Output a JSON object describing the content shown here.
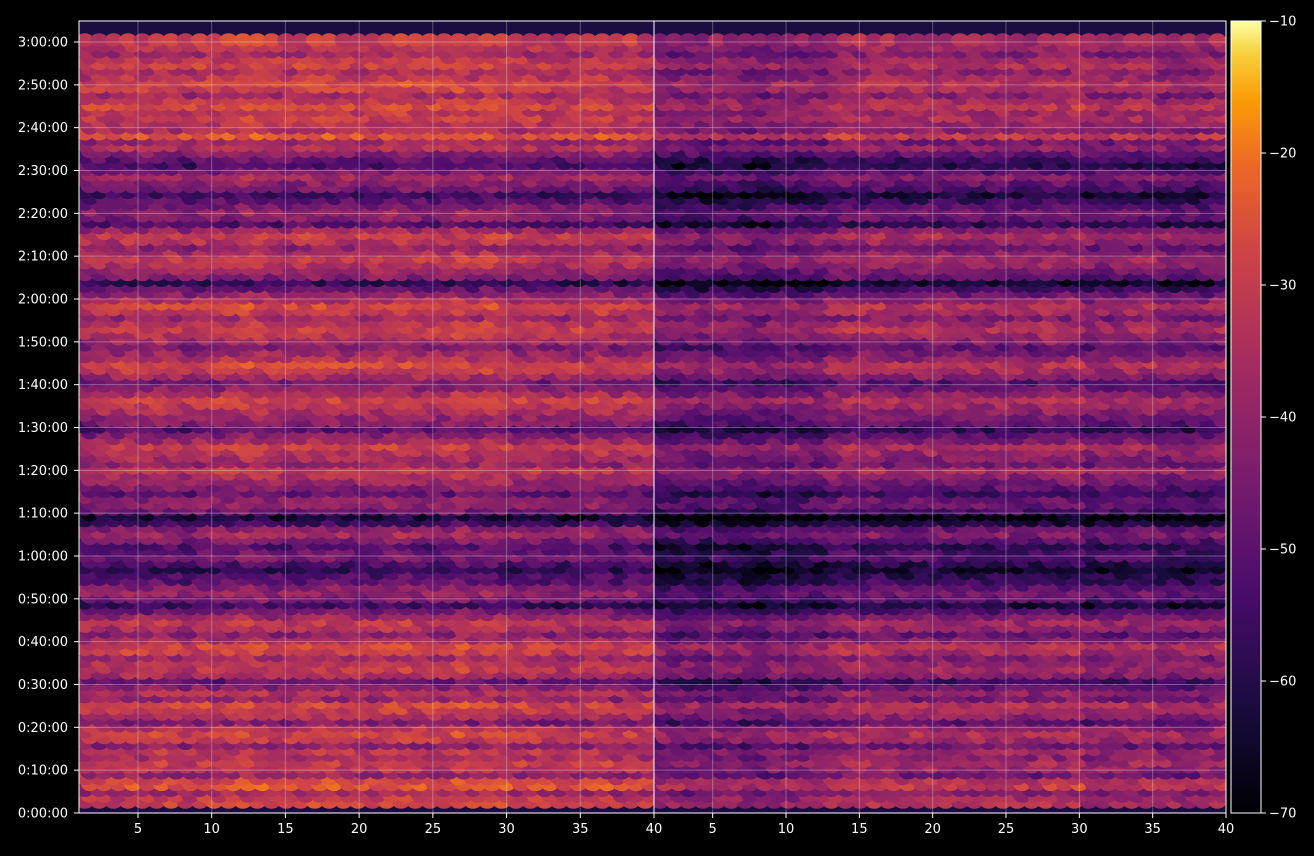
{
  "chart_data": {
    "type": "heatmap",
    "subplots": [
      {
        "x_ticks": [
          "5",
          "10",
          "15",
          "20",
          "25",
          "30",
          "35",
          "40"
        ],
        "xlim": [
          1,
          40
        ],
        "y_ticks": [
          "0:00:00",
          "0:10:00",
          "0:20:00",
          "0:30:00",
          "0:40:00",
          "0:50:00",
          "1:00:00",
          "1:10:00",
          "1:20:00",
          "1:30:00",
          "1:40:00",
          "1:50:00",
          "2:00:00",
          "2:10:00",
          "2:20:00",
          "2:30:00",
          "2:40:00",
          "2:50:00",
          "3:00:00"
        ],
        "ylim_seconds": [
          0,
          10800
        ]
      },
      {
        "x_ticks": [
          "5",
          "10",
          "15",
          "20",
          "25",
          "30",
          "35",
          "40"
        ],
        "xlim": [
          1,
          40
        ],
        "y_ticks": [],
        "ylim_seconds": [
          0,
          10800
        ],
        "offset_db": -6
      }
    ],
    "colorbar": {
      "ticks": [
        "−10",
        "−20",
        "−30",
        "−40",
        "−50",
        "−60",
        "−70"
      ],
      "vmin": -70,
      "vmax": -10,
      "colormap": "inferno"
    },
    "row_profile_db": [
      -34,
      -36,
      -42,
      -30,
      -33,
      -44,
      -38,
      -35,
      -40,
      -37,
      -45,
      -36,
      -34,
      -38,
      -48,
      -40,
      -36,
      -33,
      -44,
      -39,
      -46,
      -52,
      -40,
      -37,
      -38,
      -42,
      -35,
      -33,
      -41,
      -46,
      -39,
      -37,
      -43,
      -50,
      -58,
      -49,
      -44,
      -47,
      -53,
      -55,
      -60,
      -56,
      -49,
      -51,
      -55,
      -48,
      -42,
      -46,
      -58,
      -64,
      -50,
      -45,
      -46,
      -52,
      -47,
      -43,
      -40,
      -36,
      -44,
      -41,
      -38,
      -35,
      -42,
      -47,
      -54,
      -46,
      -44,
      -40,
      -37,
      -34,
      -40,
      -45,
      -49,
      -41,
      -36,
      -33,
      -39,
      -43,
      -47,
      -41,
      -38,
      -34,
      -37,
      -42,
      -36,
      -33,
      -40,
      -45,
      -52,
      -60,
      -47,
      -43,
      -39,
      -36,
      -40,
      -45,
      -38,
      -35,
      -43,
      -55,
      -47,
      -44,
      -48,
      -53,
      -58,
      -50,
      -46,
      -42,
      -48,
      -56,
      -52,
      -46,
      -39,
      -43,
      -30,
      -40,
      -38,
      -35,
      -37,
      -32,
      -36,
      -41,
      -35,
      -33,
      -37,
      -40,
      -34,
      -36,
      -42,
      -38,
      -35
    ]
  },
  "colors": {
    "background": "#000000",
    "axes_frame": "#ffffff",
    "grid": "#ffffff"
  }
}
